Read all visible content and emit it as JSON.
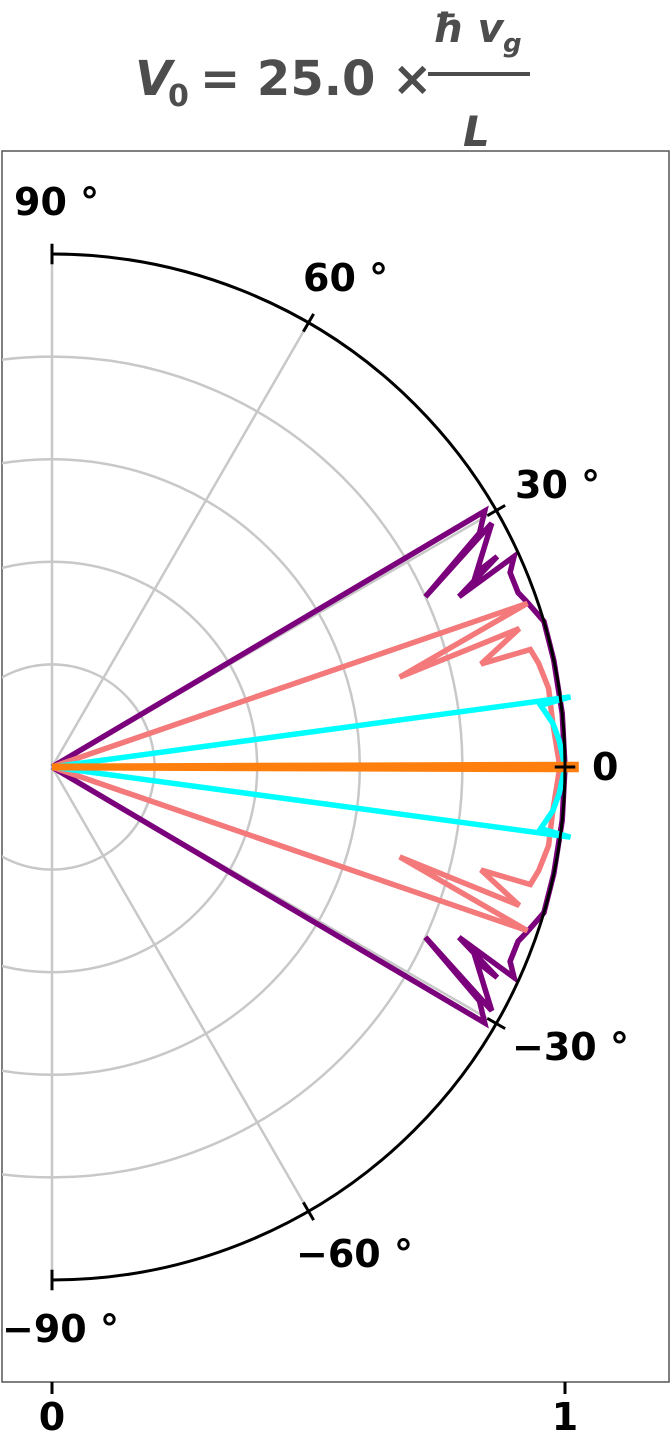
{
  "chart_data": {
    "type": "polar-line",
    "title": {
      "lhs": "V",
      "lhs_sub": "0",
      "equals": "= 25.0 ×",
      "numerator": "ħ v",
      "numerator_sub": "g",
      "denominator": "L"
    },
    "radial_range": [
      0,
      1
    ],
    "angular_range_deg": [
      -90,
      90
    ],
    "angle_ticks": [
      {
        "deg": 90,
        "label": "90 °"
      },
      {
        "deg": 60,
        "label": "60 °"
      },
      {
        "deg": 30,
        "label": "30 °"
      },
      {
        "deg": 0,
        "label": "0"
      },
      {
        "deg": -30,
        "label": "−30 °"
      },
      {
        "deg": -60,
        "label": "−60 °"
      },
      {
        "deg": -90,
        "label": "−90 °"
      }
    ],
    "radial_gridlines": [
      0.2,
      0.4,
      0.6,
      0.8
    ],
    "x_ticks": [
      {
        "value": 0,
        "label": "0"
      },
      {
        "value": 1,
        "label": "1"
      }
    ],
    "colors": {
      "frame": "#555555",
      "grid": "#c8c8c8",
      "outer_circle": "#000000"
    },
    "series": [
      {
        "color": "#7b007b",
        "points": [
          [
            0,
            0
          ],
          [
            30.6,
            0.98
          ],
          [
            28.7,
            0.95
          ],
          [
            24.5,
            0.8
          ],
          [
            29.0,
            0.98
          ],
          [
            24.6,
            0.91
          ],
          [
            25.3,
            0.96
          ],
          [
            22.7,
            0.86
          ],
          [
            24.5,
            0.99
          ],
          [
            23.0,
            0.97
          ],
          [
            20.5,
            0.97
          ],
          [
            19.2,
            0.98
          ],
          [
            16.5,
            1.0
          ],
          [
            12.0,
            1.0
          ],
          [
            6.0,
            1.0
          ],
          [
            0,
            1.0
          ],
          [
            -6.0,
            1.0
          ],
          [
            -12.0,
            1.0
          ],
          [
            -16.5,
            1.0
          ],
          [
            -19.2,
            0.98
          ],
          [
            -20.5,
            0.97
          ],
          [
            -23.0,
            0.97
          ],
          [
            -24.5,
            0.99
          ],
          [
            -22.7,
            0.86
          ],
          [
            -25.3,
            0.96
          ],
          [
            -24.6,
            0.91
          ],
          [
            -29.0,
            0.98
          ],
          [
            -24.5,
            0.8
          ],
          [
            -28.7,
            0.95
          ],
          [
            -30.6,
            0.98
          ],
          [
            0,
            0
          ]
        ]
      },
      {
        "color": "#f4797b",
        "points": [
          [
            0,
            0
          ],
          [
            19.0,
            0.98
          ],
          [
            14.5,
            0.7
          ],
          [
            16.5,
            0.95
          ],
          [
            13.5,
            0.86
          ],
          [
            13.8,
            0.96
          ],
          [
            12.0,
            0.97
          ],
          [
            9.0,
            0.98
          ],
          [
            5.0,
            0.98
          ],
          [
            0,
            0.99
          ],
          [
            -5.0,
            0.98
          ],
          [
            -9.0,
            0.98
          ],
          [
            -12.0,
            0.97
          ],
          [
            -13.8,
            0.96
          ],
          [
            -13.5,
            0.86
          ],
          [
            -16.5,
            0.95
          ],
          [
            -14.5,
            0.7
          ],
          [
            -19.0,
            0.98
          ],
          [
            0,
            0
          ]
        ]
      },
      {
        "color": "#00ffff",
        "points": [
          [
            0,
            0
          ],
          [
            7.7,
            1.02
          ],
          [
            7.2,
            0.96
          ],
          [
            5.0,
            0.98
          ],
          [
            3.0,
            0.99
          ],
          [
            0,
            1.0
          ],
          [
            -3.0,
            0.99
          ],
          [
            -5.0,
            0.98
          ],
          [
            -7.2,
            0.96
          ],
          [
            -7.7,
            1.02
          ],
          [
            0,
            0
          ]
        ]
      },
      {
        "color": "#ff7f0e",
        "points": [
          [
            0,
            0
          ],
          [
            0.2,
            1.02
          ],
          [
            0,
            1.02
          ],
          [
            -0.2,
            1.02
          ],
          [
            0,
            0
          ]
        ]
      }
    ]
  }
}
